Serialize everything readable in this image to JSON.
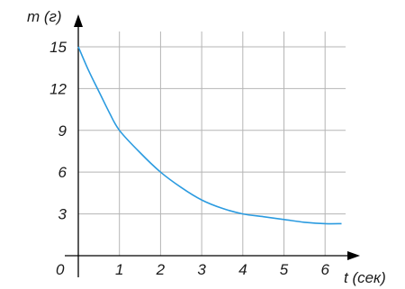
{
  "chart_data": {
    "type": "line",
    "xlabel": "t (сек)",
    "ylabel": "m (г)",
    "origin_label": "0",
    "x_ticks": [
      "1",
      "2",
      "3",
      "4",
      "5",
      "6"
    ],
    "y_ticks": [
      "3",
      "6",
      "9",
      "12",
      "15"
    ],
    "xlim": [
      0,
      6.4
    ],
    "ylim": [
      0,
      16.5
    ],
    "grid": true,
    "series": [
      {
        "x": [
          0,
          0.25,
          0.5,
          0.75,
          1,
          1.5,
          2,
          2.5,
          3,
          3.5,
          4,
          4.5,
          5,
          5.5,
          6,
          6.4
        ],
        "y": [
          15,
          13.3,
          11.8,
          10.3,
          9,
          7.4,
          6,
          4.9,
          4,
          3.4,
          3,
          2.8,
          2.6,
          2.4,
          2.3,
          2.3
        ]
      }
    ],
    "line_color": "#2b9be0",
    "grid_color": "#b5b5b5"
  }
}
